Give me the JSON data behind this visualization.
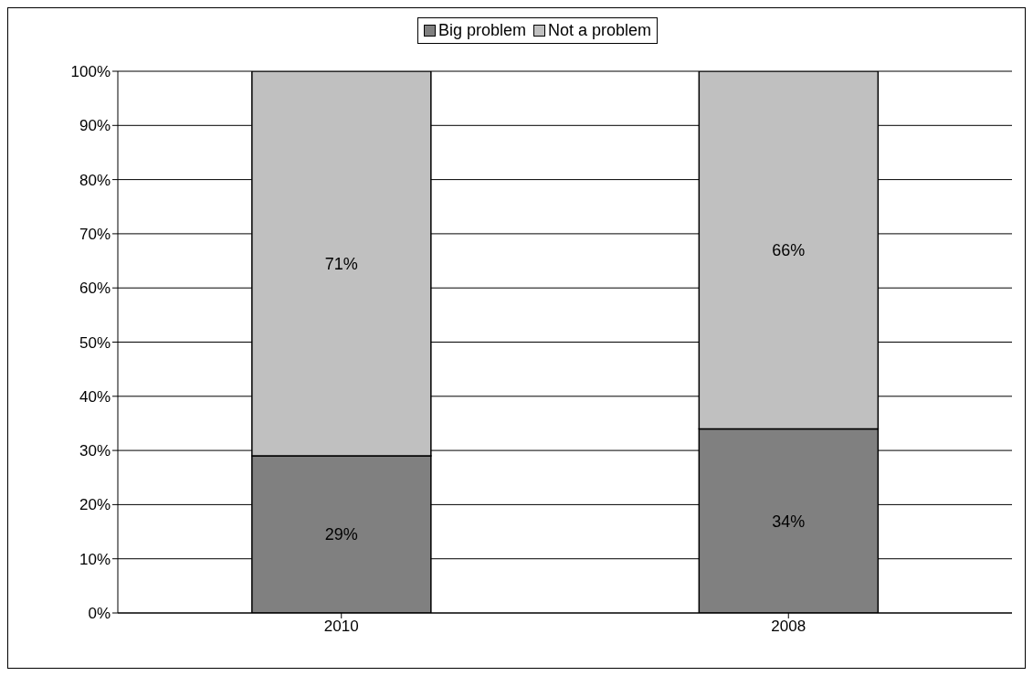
{
  "chart_data": {
    "type": "bar",
    "stacked": true,
    "categories": [
      "2010",
      "2008"
    ],
    "series": [
      {
        "name": "Big problem",
        "color": "#808080",
        "values": [
          29,
          34
        ],
        "value_labels": [
          "29%",
          "34%"
        ]
      },
      {
        "name": "Not a problem",
        "color": "#c0c0c0",
        "values": [
          71,
          66
        ],
        "value_labels": [
          "71%",
          "66%"
        ]
      }
    ],
    "ylim": [
      0,
      100
    ],
    "yticks": [
      {
        "value": 0,
        "label": "0%"
      },
      {
        "value": 10,
        "label": "10%"
      },
      {
        "value": 20,
        "label": "20%"
      },
      {
        "value": 30,
        "label": "30%"
      },
      {
        "value": 40,
        "label": "40%"
      },
      {
        "value": 50,
        "label": "50%"
      },
      {
        "value": 60,
        "label": "60%"
      },
      {
        "value": 70,
        "label": "70%"
      },
      {
        "value": 80,
        "label": "80%"
      },
      {
        "value": 90,
        "label": "90%"
      },
      {
        "value": 100,
        "label": "100%"
      }
    ],
    "grid": "y",
    "legend": "top"
  }
}
